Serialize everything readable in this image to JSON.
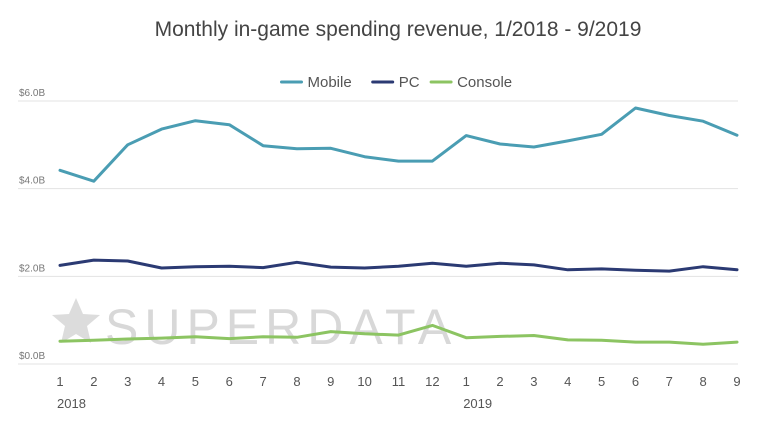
{
  "chart_data": {
    "type": "line",
    "title": "Monthly in-game spending revenue, 1/2018 - 9/2019",
    "xlabel": "",
    "ylabel": "",
    "categories": [
      "1",
      "2",
      "3",
      "4",
      "5",
      "6",
      "7",
      "8",
      "9",
      "10",
      "11",
      "12",
      "1",
      "2",
      "3",
      "4",
      "5",
      "6",
      "7",
      "8",
      "9"
    ],
    "year_labels": [
      {
        "label": "2018",
        "index": 0
      },
      {
        "label": "2019",
        "index": 12
      }
    ],
    "ylim": [
      0,
      6
    ],
    "y_ticks": [
      {
        "value": 0,
        "label": "$0.0B"
      },
      {
        "value": 2,
        "label": "$2.0B"
      },
      {
        "value": 4,
        "label": "$4.0B"
      },
      {
        "value": 6,
        "label": "$6.0B"
      }
    ],
    "grid": true,
    "legend_position": "top-center",
    "series": [
      {
        "name": "Mobile",
        "color": "#4a9db3",
        "values": [
          4.42,
          4.17,
          5.0,
          5.36,
          5.55,
          5.46,
          4.98,
          4.91,
          4.92,
          4.73,
          4.63,
          4.63,
          5.21,
          5.02,
          4.95,
          5.09,
          5.24,
          5.84,
          5.67,
          5.54,
          5.22
        ]
      },
      {
        "name": "PC",
        "color": "#2b3a73",
        "values": [
          2.25,
          2.37,
          2.35,
          2.19,
          2.22,
          2.23,
          2.2,
          2.32,
          2.21,
          2.19,
          2.23,
          2.3,
          2.23,
          2.3,
          2.26,
          2.15,
          2.17,
          2.14,
          2.12,
          2.22,
          2.15
        ]
      },
      {
        "name": "Console",
        "color": "#8cc462",
        "values": [
          0.52,
          0.54,
          0.57,
          0.59,
          0.62,
          0.58,
          0.62,
          0.61,
          0.74,
          0.69,
          0.66,
          0.88,
          0.6,
          0.63,
          0.65,
          0.55,
          0.54,
          0.5,
          0.5,
          0.45,
          0.5
        ]
      }
    ]
  },
  "watermark": {
    "text": "SUPERDATA",
    "icon": "star-icon"
  }
}
